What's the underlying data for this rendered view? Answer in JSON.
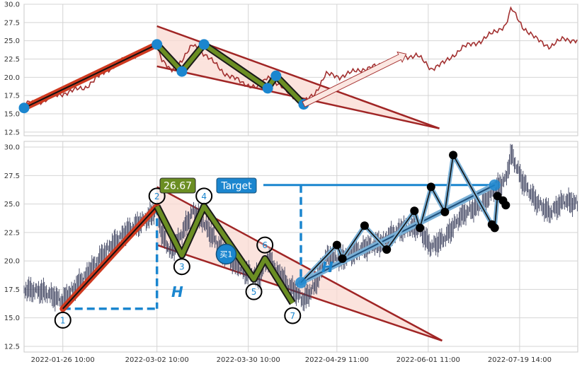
{
  "colors": {
    "price_top": "#a23030",
    "price_bottom": "#3a3f5c",
    "triangle_fill": "#f9d9d1",
    "triangle_edge": "#a02525",
    "wave_fill": "#6b8e23",
    "wave_outline": "#1a1a1a",
    "first_leg": "#cf3a20",
    "pivot": "#1b86cf",
    "measure": "#1b86cf",
    "after_outline": "#7ab0d6"
  },
  "labels": {
    "target_value": "26.67",
    "target_word": "Target",
    "buy_marker": "买1",
    "height_mark": "H",
    "pivot_numbers": [
      "1",
      "2",
      "3",
      "4",
      "5",
      "6",
      "7"
    ]
  },
  "chart_data": [
    {
      "type": "line",
      "panel": "top",
      "xlim": [
        0,
        200
      ],
      "ylim": [
        12,
        30
      ],
      "yticks": [
        "12.5",
        "15.0",
        "17.5",
        "20.0",
        "22.5",
        "25.0",
        "27.5",
        "30.0"
      ],
      "ytick_values": [
        12.5,
        15,
        17.5,
        20,
        22.5,
        25,
        27.5,
        30
      ],
      "grid_x": [
        14,
        48,
        81,
        113,
        146,
        179
      ],
      "price_anchors": [
        [
          0,
          16.3
        ],
        [
          7,
          16.8
        ],
        [
          14,
          17.8
        ],
        [
          22,
          18.6
        ],
        [
          30,
          21
        ],
        [
          38,
          22.8
        ],
        [
          44,
          23.6
        ],
        [
          48,
          24.5
        ],
        [
          50,
          22.2
        ],
        [
          53,
          20.8
        ],
        [
          57,
          22.4
        ],
        [
          61,
          24.4
        ],
        [
          65,
          23.3
        ],
        [
          72,
          20.7
        ],
        [
          79,
          19.2
        ],
        [
          85,
          18.5
        ],
        [
          88,
          20.2
        ],
        [
          94,
          18.3
        ],
        [
          101,
          16.5
        ],
        [
          105,
          17.8
        ],
        [
          109,
          20.4
        ],
        [
          114,
          20.1
        ],
        [
          122,
          21.1
        ],
        [
          129,
          21.6
        ],
        [
          136,
          22.8
        ],
        [
          142,
          23
        ],
        [
          147,
          21.2
        ],
        [
          152,
          22
        ],
        [
          158,
          24
        ],
        [
          165,
          25
        ],
        [
          170,
          26.2
        ],
        [
          174,
          27.2
        ],
        [
          176,
          29.4
        ],
        [
          180,
          27
        ],
        [
          185,
          25.2
        ],
        [
          190,
          24.2
        ],
        [
          195,
          25.3
        ],
        [
          200,
          25
        ]
      ],
      "pattern_points": [
        [
          0,
          15.8
        ],
        [
          48,
          24.5
        ],
        [
          57,
          20.8
        ],
        [
          65,
          24.5
        ],
        [
          88,
          18.5
        ],
        [
          91,
          20.2
        ],
        [
          101,
          16.3
        ]
      ],
      "triangle": {
        "upper": [
          [
            48,
            27
          ],
          [
            150,
            13
          ]
        ],
        "lower": [
          [
            48,
            21.5
          ],
          [
            150,
            13
          ]
        ]
      },
      "arrow": [
        [
          101,
          16.3
        ],
        [
          138,
          23.2
        ]
      ]
    },
    {
      "type": "line",
      "panel": "bottom",
      "xlim": [
        0,
        200
      ],
      "ylim": [
        12,
        30.5
      ],
      "yticks": [
        "12.5",
        "15.0",
        "17.5",
        "20.0",
        "22.5",
        "25.0",
        "27.5",
        "30.0"
      ],
      "ytick_values": [
        12.5,
        15,
        17.5,
        20,
        22.5,
        25,
        27.5,
        30
      ],
      "xticks": [
        "2022-01-26 10:00",
        "2022-03-02 10:00",
        "2022-03-30 10:00",
        "2022-04-29 11:00",
        "2022-06-01 11:00",
        "2022-07-19 14:00"
      ],
      "xtick_positions": [
        14,
        48,
        81,
        113,
        146,
        179
      ],
      "price_anchors": [
        [
          0,
          17.5
        ],
        [
          7,
          17.3
        ],
        [
          14,
          16.5
        ],
        [
          22,
          18.6
        ],
        [
          30,
          21
        ],
        [
          38,
          22.8
        ],
        [
          44,
          23.6
        ],
        [
          48,
          24.5
        ],
        [
          50,
          22.2
        ],
        [
          53,
          20.8
        ],
        [
          57,
          22.4
        ],
        [
          61,
          24.4
        ],
        [
          65,
          23.3
        ],
        [
          72,
          20.7
        ],
        [
          79,
          19.2
        ],
        [
          85,
          18.5
        ],
        [
          88,
          20.2
        ],
        [
          94,
          18.3
        ],
        [
          101,
          16.5
        ],
        [
          105,
          17.8
        ],
        [
          109,
          20.4
        ],
        [
          114,
          20.1
        ],
        [
          122,
          21.1
        ],
        [
          129,
          21.6
        ],
        [
          136,
          22.8
        ],
        [
          142,
          23
        ],
        [
          147,
          21.2
        ],
        [
          152,
          22
        ],
        [
          158,
          24
        ],
        [
          165,
          25
        ],
        [
          170,
          26.2
        ],
        [
          174,
          27.2
        ],
        [
          176,
          29.4
        ],
        [
          180,
          27
        ],
        [
          185,
          25.2
        ],
        [
          190,
          24.2
        ],
        [
          195,
          25.3
        ],
        [
          200,
          25
        ]
      ],
      "pattern_points": [
        [
          14,
          15.8
        ],
        [
          48,
          24.8
        ],
        [
          57,
          20.5
        ],
        [
          65,
          24.8
        ],
        [
          83,
          18.4
        ],
        [
          87,
          20.2
        ],
        [
          97,
          16.3
        ]
      ],
      "pattern_numbers": [
        {
          "label": "1",
          "x": 14,
          "y": 14.8
        },
        {
          "label": "2",
          "x": 48,
          "y": 25.7
        },
        {
          "label": "3",
          "x": 57,
          "y": 19.5
        },
        {
          "label": "4",
          "x": 65,
          "y": 25.7
        },
        {
          "label": "5",
          "x": 83,
          "y": 17.3
        },
        {
          "label": "6",
          "x": 87,
          "y": 21.4
        },
        {
          "label": "7",
          "x": 97,
          "y": 15.2
        }
      ],
      "triangle": {
        "upper": [
          [
            48,
            26.5
          ],
          [
            151,
            13
          ]
        ],
        "lower": [
          [
            48,
            21.4
          ],
          [
            151,
            13
          ]
        ]
      },
      "buy_point": {
        "x": 73,
        "y": 20.6
      },
      "breakout_point": {
        "x": 100,
        "y": 18.1
      },
      "target_point": {
        "x": 170,
        "y": 26.67
      },
      "target_level": 26.67,
      "height_segment": {
        "x": 48,
        "y_top": 24.8,
        "y_bottom": 15.8
      },
      "breakout_height_segment": {
        "x": 100,
        "y_top": 26.67,
        "y_bottom": 18.1
      },
      "post_points": [
        [
          100,
          18.1
        ],
        [
          113,
          21.4
        ],
        [
          115,
          20.2
        ],
        [
          123,
          23.1
        ],
        [
          131,
          21
        ],
        [
          141,
          24.4
        ],
        [
          143,
          22.9
        ],
        [
          147,
          26.5
        ],
        [
          152,
          24.3
        ],
        [
          155,
          29.3
        ],
        [
          169,
          23.2
        ],
        [
          170,
          22.9
        ],
        [
          171,
          25.7
        ],
        [
          173,
          25.3
        ],
        [
          174,
          24.9
        ]
      ]
    }
  ]
}
